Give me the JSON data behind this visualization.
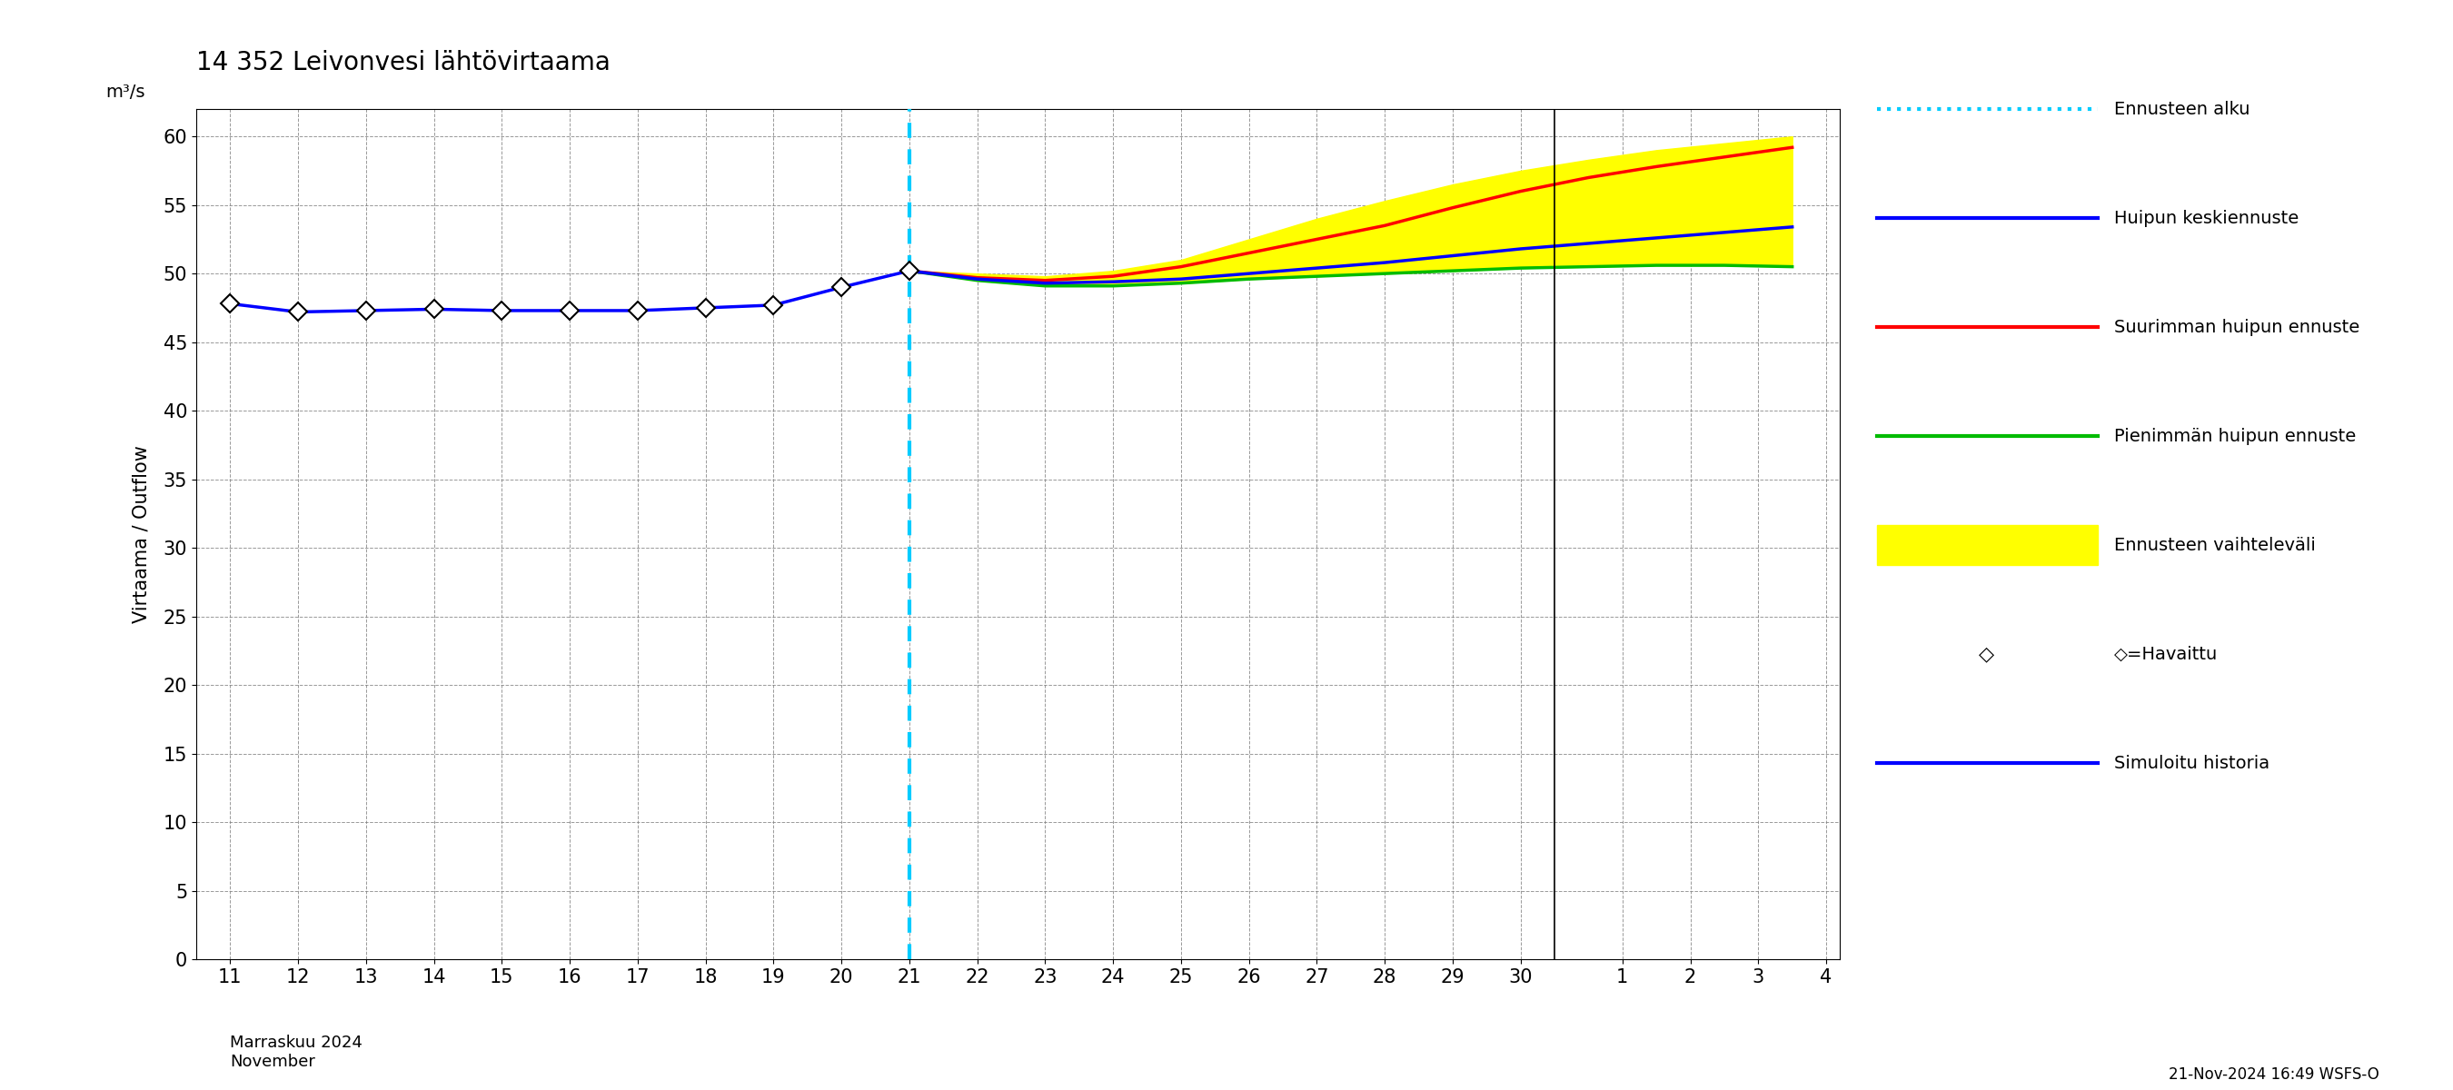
{
  "title": "14 352 Leivonvesi lähtövirtaama",
  "ylabel_left": "Virtaama / Outflow",
  "ylabel_right": "m³/s",
  "ylim": [
    0,
    62
  ],
  "yticks": [
    0,
    5,
    10,
    15,
    20,
    25,
    30,
    35,
    40,
    45,
    50,
    55,
    60
  ],
  "footnote": "21-Nov-2024 16:49 WSFS-O",
  "xlabel_month": "Marraskuu 2024\nNovember",
  "ennusteen_alku_x": 21,
  "background_color": "#ffffff",
  "hist_x": [
    11,
    12,
    13,
    14,
    15,
    16,
    17,
    18,
    19,
    20,
    21
  ],
  "hist_y": [
    47.8,
    47.2,
    47.3,
    47.4,
    47.3,
    47.3,
    47.3,
    47.5,
    47.7,
    49.0,
    50.2
  ],
  "obs_x": [
    11,
    12,
    13,
    14,
    15,
    16,
    17,
    18,
    19,
    20,
    21
  ],
  "obs_y": [
    47.8,
    47.2,
    47.3,
    47.4,
    47.3,
    47.3,
    47.3,
    47.5,
    47.7,
    49.0,
    50.2
  ],
  "forecast_x": [
    21,
    22,
    23,
    24,
    25,
    26,
    27,
    28,
    29,
    30,
    31,
    32,
    33,
    34
  ],
  "mean_y": [
    50.2,
    49.6,
    49.3,
    49.4,
    49.6,
    50.0,
    50.4,
    50.8,
    51.3,
    51.8,
    52.2,
    52.6,
    53.0,
    53.4
  ],
  "max_y": [
    50.2,
    49.7,
    49.5,
    49.8,
    50.5,
    51.5,
    52.5,
    53.5,
    54.8,
    56.0,
    57.0,
    57.8,
    58.5,
    59.2
  ],
  "min_y": [
    50.2,
    49.5,
    49.1,
    49.1,
    49.3,
    49.6,
    49.8,
    50.0,
    50.2,
    50.4,
    50.5,
    50.6,
    50.6,
    50.5
  ],
  "upper_y": [
    50.2,
    50.0,
    49.8,
    50.2,
    51.0,
    52.5,
    54.0,
    55.3,
    56.5,
    57.5,
    58.3,
    59.0,
    59.5,
    60.0
  ],
  "lower_y": [
    50.2,
    49.5,
    49.1,
    49.1,
    49.3,
    49.6,
    49.8,
    50.0,
    50.2,
    50.4,
    50.5,
    50.6,
    50.6,
    50.5
  ],
  "color_hist": "#0000ff",
  "color_mean": "#0000ff",
  "color_max": "#ff0000",
  "color_min": "#00bb00",
  "color_band": "#ffff00",
  "color_ennuste_alku": "#00ccff",
  "color_obs_marker_fill": "#ffffff",
  "color_obs_marker_edge": "#000000",
  "x_ticks_nov": [
    11,
    12,
    13,
    14,
    15,
    16,
    17,
    18,
    19,
    20,
    21,
    22,
    23,
    24,
    25,
    26,
    27,
    28,
    29,
    30
  ],
  "x_ticks_dec": [
    1,
    2,
    3,
    4
  ],
  "dec_separator_x": 30.5,
  "xlim_left": 10.5,
  "xlim_right": 34.7,
  "legend_labels": [
    "Ennusteen alku",
    "Huipun keskiennuste",
    "Suurimman huipun ennuste",
    "Pienimmän huipun ennuste",
    "Ennusteen vaihteleväli",
    "◇=Havaittu",
    "Simuloitu historia"
  ],
  "legend_colors": [
    "#00ccff",
    "#0000ff",
    "#ff0000",
    "#00bb00",
    "#ffff00",
    "#000000",
    "#0000ff"
  ],
  "legend_styles": [
    "dotted",
    "solid",
    "solid",
    "solid",
    "patch",
    "marker",
    "solid"
  ]
}
